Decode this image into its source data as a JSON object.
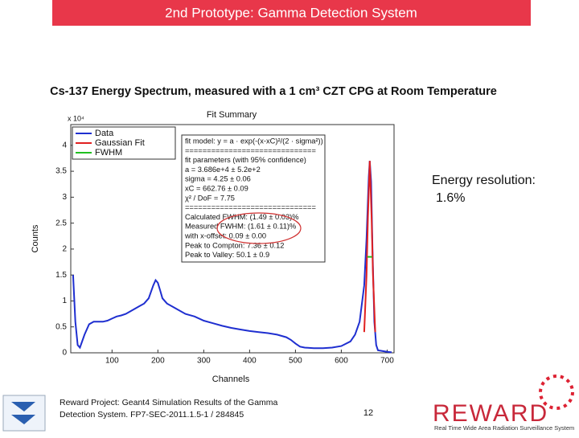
{
  "slide": {
    "title": "2nd Prototype: Gamma Detection System",
    "subtitle": "Cs-137 Energy Spectrum, measured with a 1 cm³ CZT CPG at Room Temperature",
    "resolution_label": "Energy resolution:",
    "resolution_value": "1.6%",
    "footer_line1": "Reward Project: Geant4 Simulation Results of the Gamma",
    "footer_line2": "Detection System. FP7-SEC-2011.1.5-1 / 284845",
    "page_number": "12",
    "logo": "REWARD",
    "logo_tagline": "Real Time Wide Area Radiation Surveillance System"
  },
  "chart_data": {
    "type": "line",
    "title": "Fit Summary",
    "x_label": "Channels",
    "y_label": "Counts",
    "y_multiplier": "x 10⁴",
    "xlim": [
      10,
      715
    ],
    "ylim": [
      0,
      4.4
    ],
    "xticks": [
      100,
      200,
      300,
      400,
      500,
      600,
      700
    ],
    "yticks": [
      0,
      0.5,
      1,
      1.5,
      2,
      2.5,
      3,
      3.5,
      4
    ],
    "legend": "upper left",
    "fit_summary": [
      "fit model: y = a · exp(-(x-xC)²/(2 · sigma²))",
      "==============================",
      "fit parameters (with 95% confidence)",
      "a = 3.686e+4 ± 5.2e+2",
      "sigma = 4.25 ± 0.06",
      "xC = 662.76 ± 0.09",
      "χ² / DoF = 7.75",
      "==============================",
      "Calculated FWHM: (1.49 ± 0.03)%",
      "Measured FWHM: (1.61 ± 0.11)%",
      "with x-offset: 0.09 ± 0.00",
      "Peak to Compton: 7.36 ± 0.12",
      "Peak to Valley: 50.1 ± 0.9"
    ],
    "series": [
      {
        "name": "Data",
        "color": "#1f2fd0",
        "x": [
          15,
          20,
          25,
          30,
          40,
          50,
          60,
          70,
          80,
          90,
          100,
          110,
          120,
          130,
          140,
          150,
          160,
          170,
          180,
          190,
          195,
          200,
          205,
          210,
          220,
          240,
          260,
          280,
          300,
          320,
          340,
          360,
          380,
          400,
          420,
          440,
          460,
          480,
          490,
          500,
          510,
          520,
          540,
          560,
          580,
          600,
          620,
          630,
          640,
          650,
          655,
          660,
          662,
          665,
          668,
          672,
          676,
          680,
          700,
          710
        ],
        "values": [
          1.5,
          0.6,
          0.15,
          0.1,
          0.35,
          0.55,
          0.6,
          0.6,
          0.6,
          0.62,
          0.66,
          0.7,
          0.72,
          0.75,
          0.8,
          0.85,
          0.9,
          0.95,
          1.05,
          1.3,
          1.4,
          1.35,
          1.2,
          1.05,
          0.95,
          0.85,
          0.75,
          0.7,
          0.62,
          0.57,
          0.52,
          0.48,
          0.45,
          0.42,
          0.4,
          0.38,
          0.35,
          0.3,
          0.25,
          0.18,
          0.12,
          0.1,
          0.09,
          0.09,
          0.1,
          0.13,
          0.22,
          0.35,
          0.6,
          1.3,
          2.2,
          3.4,
          3.7,
          3.3,
          2.0,
          0.6,
          0.15,
          0.05,
          0.02,
          0.01
        ]
      },
      {
        "name": "Gaussian Fit",
        "color": "#e02020",
        "x": [
          650,
          655,
          658,
          662,
          666,
          669,
          674
        ],
        "values": [
          0.4,
          1.5,
          2.6,
          3.7,
          2.6,
          1.5,
          0.4
        ]
      },
      {
        "name": "FWHM",
        "color": "#20c020",
        "x": [
          657,
          667
        ],
        "values": [
          1.85,
          1.85
        ]
      }
    ]
  }
}
